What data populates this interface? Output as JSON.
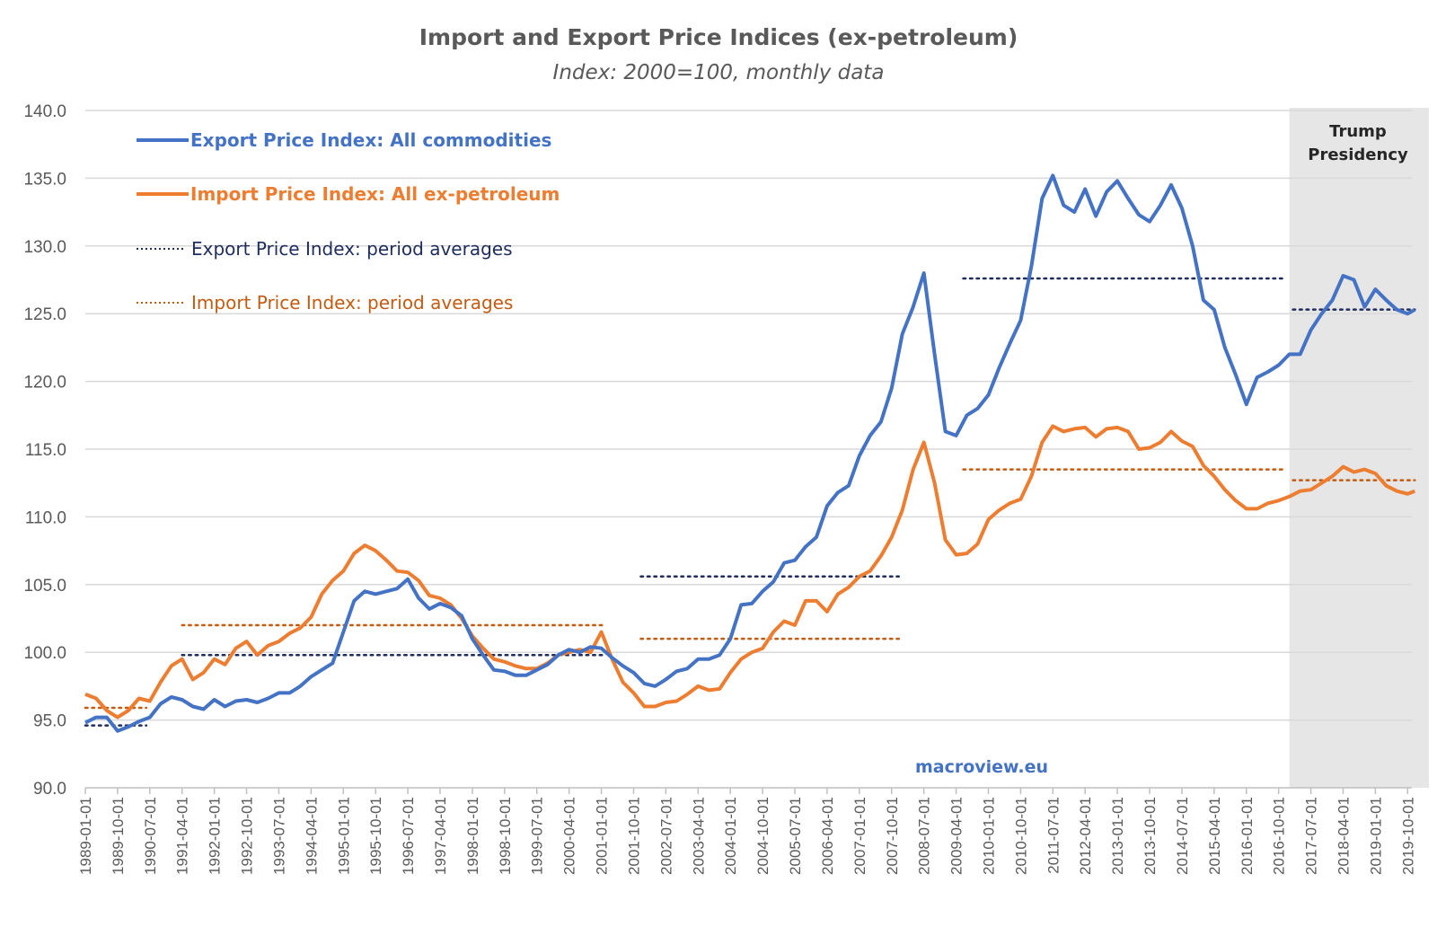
{
  "chart_data": {
    "type": "line",
    "title": "Import and Export Price Indices (ex-petroleum)",
    "subtitle": "Index: 2000=100, monthly data",
    "ylim": [
      90,
      140
    ],
    "yticks": [
      "90.0",
      "95.0",
      "100.0",
      "105.0",
      "110.0",
      "115.0",
      "120.0",
      "125.0",
      "130.0",
      "135.0",
      "140.0"
    ],
    "xticks": [
      "1989-01-01",
      "1989-10-01",
      "1990-07-01",
      "1991-04-01",
      "1992-01-01",
      "1992-10-01",
      "1993-07-01",
      "1994-04-01",
      "1995-01-01",
      "1995-10-01",
      "1996-07-01",
      "1997-04-01",
      "1998-01-01",
      "1998-10-01",
      "1999-07-01",
      "2000-04-01",
      "2001-01-01",
      "2001-10-01",
      "2002-07-01",
      "2003-04-01",
      "2004-01-01",
      "2004-10-01",
      "2005-07-01",
      "2006-04-01",
      "2007-01-01",
      "2007-10-01",
      "2008-07-01",
      "2009-04-01",
      "2010-01-01",
      "2010-10-01",
      "2011-07-01",
      "2012-04-01",
      "2013-01-01",
      "2013-10-01",
      "2014-07-01",
      "2015-04-01",
      "2016-01-01",
      "2016-10-01",
      "2017-07-01",
      "2018-04-01",
      "2019-01-01",
      "2019-10-01"
    ],
    "grid": true,
    "legend_placement": "top-left",
    "x": [
      "1989-01",
      "1989-04",
      "1989-07",
      "1989-10",
      "1990-01",
      "1990-04",
      "1990-07",
      "1990-10",
      "1991-01",
      "1991-04",
      "1991-07",
      "1991-10",
      "1992-01",
      "1992-04",
      "1992-07",
      "1992-10",
      "1993-01",
      "1993-04",
      "1993-07",
      "1993-10",
      "1994-01",
      "1994-04",
      "1994-07",
      "1994-10",
      "1995-01",
      "1995-04",
      "1995-07",
      "1995-10",
      "1996-01",
      "1996-04",
      "1996-07",
      "1996-10",
      "1997-01",
      "1997-04",
      "1997-07",
      "1997-10",
      "1998-01",
      "1998-04",
      "1998-07",
      "1998-10",
      "1999-01",
      "1999-04",
      "1999-07",
      "1999-10",
      "2000-01",
      "2000-04",
      "2000-07",
      "2000-10",
      "2001-01",
      "2001-04",
      "2001-07",
      "2001-10",
      "2002-01",
      "2002-04",
      "2002-07",
      "2002-10",
      "2003-01",
      "2003-04",
      "2003-07",
      "2003-10",
      "2004-01",
      "2004-04",
      "2004-07",
      "2004-10",
      "2005-01",
      "2005-04",
      "2005-07",
      "2005-10",
      "2006-01",
      "2006-04",
      "2006-07",
      "2006-10",
      "2007-01",
      "2007-04",
      "2007-07",
      "2007-10",
      "2008-01",
      "2008-04",
      "2008-07",
      "2008-10",
      "2009-01",
      "2009-04",
      "2009-07",
      "2009-10",
      "2010-01",
      "2010-04",
      "2010-07",
      "2010-10",
      "2011-01",
      "2011-04",
      "2011-07",
      "2011-10",
      "2012-01",
      "2012-04",
      "2012-07",
      "2012-10",
      "2013-01",
      "2013-04",
      "2013-07",
      "2013-10",
      "2014-01",
      "2014-04",
      "2014-07",
      "2014-10",
      "2015-01",
      "2015-04",
      "2015-07",
      "2015-10",
      "2016-01",
      "2016-04",
      "2016-07",
      "2016-10",
      "2017-01",
      "2017-04",
      "2017-07",
      "2017-10",
      "2018-01",
      "2018-04",
      "2018-07",
      "2018-10",
      "2019-01",
      "2019-04",
      "2019-07",
      "2019-10",
      "2019-12"
    ],
    "series": [
      {
        "name": "Export Price Index: All commodities",
        "color": "#4472C4",
        "values": [
          94.8,
          95.2,
          95.2,
          94.2,
          94.5,
          94.9,
          95.2,
          96.2,
          96.7,
          96.5,
          96.0,
          95.8,
          96.5,
          96.0,
          96.4,
          96.5,
          96.3,
          96.6,
          97.0,
          97.0,
          97.5,
          98.2,
          98.7,
          99.2,
          101.5,
          103.8,
          104.5,
          104.3,
          104.5,
          104.7,
          105.4,
          104.0,
          103.2,
          103.6,
          103.3,
          102.7,
          101.0,
          99.8,
          98.7,
          98.6,
          98.3,
          98.3,
          98.7,
          99.1,
          99.8,
          100.2,
          100.0,
          100.4,
          100.3,
          99.6,
          99.0,
          98.5,
          97.7,
          97.5,
          98.0,
          98.6,
          98.8,
          99.5,
          99.5,
          99.8,
          101.0,
          103.5,
          103.6,
          104.5,
          105.2,
          106.6,
          106.8,
          107.8,
          108.5,
          110.8,
          111.8,
          112.3,
          114.5,
          116.0,
          117.0,
          119.5,
          123.5,
          125.5,
          128.0,
          122.0,
          116.3,
          116.0,
          117.5,
          118.0,
          119.0,
          121.0,
          122.8,
          124.5,
          128.5,
          133.5,
          135.2,
          133.0,
          132.5,
          134.2,
          132.2,
          134.0,
          134.8,
          133.5,
          132.3,
          131.8,
          133.0,
          134.5,
          132.8,
          130.0,
          126.0,
          125.3,
          122.5,
          120.5,
          118.3,
          120.3,
          120.7,
          121.2,
          122.0,
          122.0,
          123.8,
          125.0,
          126.0,
          127.8,
          127.5,
          125.5,
          126.8,
          126.0,
          125.3,
          125.0,
          125.3
        ]
      },
      {
        "name": "Import Price Index: All ex-petroleum",
        "color": "#ED7D31",
        "values": [
          96.9,
          96.6,
          95.7,
          95.2,
          95.7,
          96.6,
          96.4,
          97.8,
          99.0,
          99.5,
          98.0,
          98.5,
          99.5,
          99.1,
          100.3,
          100.8,
          99.8,
          100.5,
          100.8,
          101.4,
          101.8,
          102.6,
          104.3,
          105.3,
          106.0,
          107.3,
          107.9,
          107.5,
          106.8,
          106.0,
          105.9,
          105.3,
          104.2,
          104.0,
          103.5,
          102.5,
          101.2,
          100.3,
          99.5,
          99.3,
          99.0,
          98.8,
          98.8,
          99.2,
          99.8,
          100.0,
          100.2,
          100.0,
          101.5,
          99.5,
          97.8,
          97.0,
          96.0,
          96.0,
          96.3,
          96.4,
          96.9,
          97.5,
          97.2,
          97.3,
          98.5,
          99.5,
          100.0,
          100.3,
          101.5,
          102.3,
          102.0,
          103.8,
          103.8,
          103.0,
          104.3,
          104.8,
          105.6,
          106.0,
          107.1,
          108.5,
          110.5,
          113.5,
          115.5,
          112.5,
          108.3,
          107.2,
          107.3,
          108.0,
          109.8,
          110.5,
          111.0,
          111.3,
          113.0,
          115.5,
          116.7,
          116.3,
          116.5,
          116.6,
          115.9,
          116.5,
          116.6,
          116.3,
          115.0,
          115.1,
          115.5,
          116.3,
          115.6,
          115.2,
          113.8,
          113.0,
          112.0,
          111.2,
          110.6,
          110.6,
          111.0,
          111.2,
          111.5,
          111.9,
          112.0,
          112.5,
          113.0,
          113.7,
          113.3,
          113.5,
          113.2,
          112.3,
          111.9,
          111.7,
          111.9
        ]
      }
    ],
    "period_averages": [
      {
        "name": "Export Price Index: period averages",
        "color": "#1F2D5C",
        "segments": [
          {
            "start": "1989-01",
            "end": "1990-05",
            "value": 94.6
          },
          {
            "start": "1991-04",
            "end": "2001-01",
            "value": 99.8
          },
          {
            "start": "2001-12",
            "end": "2007-11",
            "value": 105.6
          },
          {
            "start": "2009-06",
            "end": "2016-11",
            "value": 127.6
          },
          {
            "start": "2017-02",
            "end": "2019-11",
            "value": 125.3
          }
        ]
      },
      {
        "name": "Import Price Index: period averages",
        "color": "#C55A11",
        "segments": [
          {
            "start": "1989-01",
            "end": "1990-05",
            "value": 95.9
          },
          {
            "start": "1991-04",
            "end": "2001-01",
            "value": 102.0
          },
          {
            "start": "2001-12",
            "end": "2007-11",
            "value": 101.0
          },
          {
            "start": "2009-06",
            "end": "2016-11",
            "value": 113.5
          },
          {
            "start": "2017-02",
            "end": "2019-11",
            "value": 112.7
          }
        ]
      }
    ],
    "shaded_region": {
      "label_line1": "Trump",
      "label_line2": "Presidency",
      "start": "2017-01",
      "color": "#E7E6E6"
    },
    "watermark": {
      "text": "macroview.eu",
      "color": "#4472C4"
    }
  }
}
